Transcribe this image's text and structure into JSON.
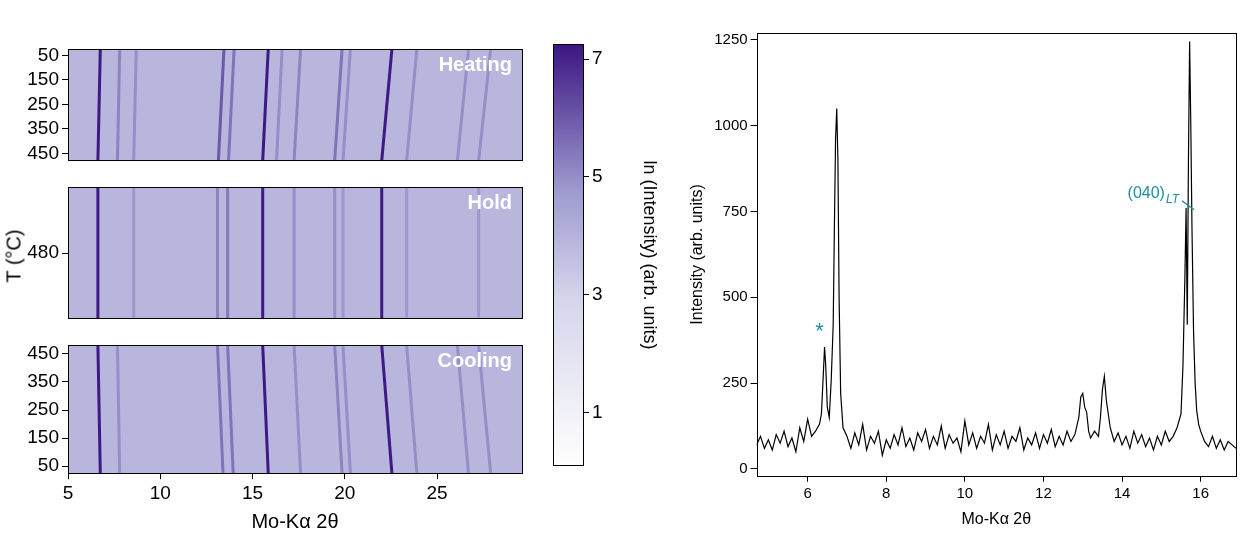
{
  "chart_data": [
    {
      "type": "heatmap",
      "xlabel": "Mo-Kα 2θ",
      "ylabel": "T (°C)",
      "xlim": [
        5,
        29.6
      ],
      "xticks": [
        5,
        10,
        15,
        20,
        25
      ],
      "background": 3.9,
      "color_bar": {
        "label": "ln (Intensity) (arb. units)",
        "range": [
          0.1,
          7.25
        ],
        "ticks": [
          1,
          3,
          5,
          7
        ]
      },
      "panels": [
        {
          "title": "Heating",
          "ylim": [
            480,
            25
          ],
          "yticks": [
            50,
            150,
            250,
            350,
            450
          ],
          "tick_labels": "y",
          "streaks": [
            {
              "x": [
                6.75,
                6.62
              ],
              "y": [
                25,
                480
              ],
              "value": 7.2
            },
            {
              "x": [
                7.8,
                7.68
              ],
              "y": [
                25,
                480
              ],
              "value": 5.2
            },
            {
              "x": [
                8.7,
                8.56
              ],
              "y": [
                25,
                480
              ],
              "value": 5
            },
            {
              "x": [
                13.45,
                13.15
              ],
              "y": [
                25,
                480
              ],
              "value": 6
            },
            {
              "x": [
                14.0,
                13.7
              ],
              "y": [
                25,
                480
              ],
              "value": 5.5
            },
            {
              "x": [
                15.85,
                15.55
              ],
              "y": [
                25,
                480
              ],
              "value": 7.2
            },
            {
              "x": [
                16.6,
                16.3
              ],
              "y": [
                25,
                480
              ],
              "value": 5
            },
            {
              "x": [
                17.6,
                17.25
              ],
              "y": [
                25,
                480
              ],
              "value": 5.2
            },
            {
              "x": [
                19.85,
                19.45
              ],
              "y": [
                25,
                480
              ],
              "value": 5.5
            },
            {
              "x": [
                20.3,
                19.9
              ],
              "y": [
                25,
                480
              ],
              "value": 5
            },
            {
              "x": [
                22.55,
                22.0
              ],
              "y": [
                25,
                480
              ],
              "value": 7.2
            },
            {
              "x": [
                23.9,
                23.35
              ],
              "y": [
                25,
                480
              ],
              "value": 5
            },
            {
              "x": [
                26.7,
                26.1
              ],
              "y": [
                25,
                480
              ],
              "value": 5
            },
            {
              "x": [
                27.9,
                27.25
              ],
              "y": [
                25,
                480
              ],
              "value": 5
            }
          ]
        },
        {
          "title": "Hold",
          "ylim": [
            479,
            481
          ],
          "yticks": [
            480
          ],
          "tick_labels": "y",
          "streaks": [
            {
              "x": [
                6.62,
                6.62
              ],
              "y": [
                479,
                481
              ],
              "value": 7.2
            },
            {
              "x": [
                8.56,
                8.56
              ],
              "y": [
                479,
                481
              ],
              "value": 4.8
            },
            {
              "x": [
                13.1,
                13.1
              ],
              "y": [
                479,
                481
              ],
              "value": 5.2
            },
            {
              "x": [
                13.65,
                13.65
              ],
              "y": [
                479,
                481
              ],
              "value": 5.4
            },
            {
              "x": [
                15.55,
                15.55
              ],
              "y": [
                479,
                481
              ],
              "value": 7.2
            },
            {
              "x": [
                17.25,
                17.25
              ],
              "y": [
                479,
                481
              ],
              "value": 5
            },
            {
              "x": [
                19.45,
                19.45
              ],
              "y": [
                479,
                481
              ],
              "value": 5
            },
            {
              "x": [
                19.9,
                19.9
              ],
              "y": [
                479,
                481
              ],
              "value": 4.8
            },
            {
              "x": [
                22.0,
                22.0
              ],
              "y": [
                479,
                481
              ],
              "value": 7.2
            },
            {
              "x": [
                23.35,
                23.35
              ],
              "y": [
                479,
                481
              ],
              "value": 4.8
            },
            {
              "x": [
                27.25,
                27.25
              ],
              "y": [
                479,
                481
              ],
              "value": 4.8
            }
          ]
        },
        {
          "title": "Cooling",
          "ylim": [
            25,
            480
          ],
          "yticks": [
            50,
            150,
            250,
            350,
            450
          ],
          "streaks": [
            {
              "x": [
                6.62,
                6.75
              ],
              "y": [
                480,
                25
              ],
              "value": 7.2
            },
            {
              "x": [
                7.68,
                7.8
              ],
              "y": [
                480,
                25
              ],
              "value": 5
            },
            {
              "x": [
                13.1,
                13.4
              ],
              "y": [
                480,
                25
              ],
              "value": 5.5
            },
            {
              "x": [
                13.65,
                13.95
              ],
              "y": [
                480,
                25
              ],
              "value": 5.5
            },
            {
              "x": [
                15.55,
                15.85
              ],
              "y": [
                480,
                25
              ],
              "value": 7.2
            },
            {
              "x": [
                17.25,
                17.6
              ],
              "y": [
                480,
                25
              ],
              "value": 5
            },
            {
              "x": [
                19.45,
                19.85
              ],
              "y": [
                480,
                25
              ],
              "value": 5.2
            },
            {
              "x": [
                19.9,
                20.3
              ],
              "y": [
                480,
                25
              ],
              "value": 5
            },
            {
              "x": [
                22.0,
                22.55
              ],
              "y": [
                480,
                25
              ],
              "value": 7.2
            },
            {
              "x": [
                23.35,
                23.9
              ],
              "y": [
                480,
                25
              ],
              "value": 5
            },
            {
              "x": [
                26.1,
                26.7
              ],
              "y": [
                480,
                25
              ],
              "value": 5
            },
            {
              "x": [
                27.25,
                27.9
              ],
              "y": [
                480,
                25
              ],
              "value": 5
            }
          ]
        }
      ]
    },
    {
      "type": "line",
      "xlabel": "Mo-Kα 2θ",
      "ylabel": "Intensity (arb. units)",
      "xlim": [
        4.7,
        16.9
      ],
      "xticks": [
        6,
        8,
        10,
        12,
        14,
        16
      ],
      "ylim": [
        -20,
        1270
      ],
      "yticks": [
        0,
        250,
        500,
        750,
        1000,
        1250
      ],
      "grid": false,
      "color": "#000000",
      "x": [
        4.7,
        4.8,
        4.9,
        5.0,
        5.1,
        5.2,
        5.3,
        5.4,
        5.5,
        5.6,
        5.7,
        5.8,
        5.9,
        6.0,
        6.1,
        6.2,
        6.3,
        6.35,
        6.4,
        6.43,
        6.46,
        6.5,
        6.55,
        6.6,
        6.65,
        6.68,
        6.71,
        6.74,
        6.77,
        6.8,
        6.84,
        6.9,
        7.0,
        7.1,
        7.2,
        7.3,
        7.4,
        7.5,
        7.6,
        7.7,
        7.8,
        7.9,
        8.0,
        8.1,
        8.2,
        8.3,
        8.4,
        8.5,
        8.6,
        8.7,
        8.8,
        8.9,
        9.0,
        9.1,
        9.2,
        9.3,
        9.4,
        9.5,
        9.6,
        9.7,
        9.8,
        9.9,
        10.0,
        10.1,
        10.2,
        10.3,
        10.4,
        10.5,
        10.6,
        10.7,
        10.8,
        10.9,
        11.0,
        11.1,
        11.2,
        11.3,
        11.4,
        11.5,
        11.6,
        11.7,
        11.8,
        11.9,
        12.0,
        12.1,
        12.2,
        12.3,
        12.4,
        12.5,
        12.6,
        12.7,
        12.8,
        12.9,
        12.95,
        13.0,
        13.05,
        13.1,
        13.15,
        13.2,
        13.3,
        13.4,
        13.45,
        13.5,
        13.55,
        13.6,
        13.65,
        13.7,
        13.8,
        13.9,
        14.0,
        14.1,
        14.2,
        14.3,
        14.4,
        14.5,
        14.6,
        14.7,
        14.8,
        14.9,
        15.0,
        15.1,
        15.2,
        15.3,
        15.4,
        15.5,
        15.55,
        15.6,
        15.63,
        15.66,
        15.69,
        15.72,
        15.75,
        15.78,
        15.82,
        15.86,
        15.9,
        15.95,
        16.0,
        16.1,
        16.2,
        16.3,
        16.4,
        16.5,
        16.6,
        16.7,
        16.8,
        16.9
      ],
      "values": [
        70,
        95,
        60,
        85,
        55,
        100,
        75,
        110,
        65,
        90,
        50,
        120,
        80,
        145,
        95,
        110,
        130,
        160,
        280,
        355,
        300,
        180,
        150,
        260,
        420,
        700,
        960,
        1050,
        900,
        500,
        220,
        120,
        95,
        60,
        105,
        70,
        130,
        55,
        95,
        75,
        110,
        40,
        85,
        60,
        100,
        70,
        120,
        65,
        90,
        55,
        105,
        80,
        115,
        60,
        95,
        70,
        125,
        60,
        100,
        75,
        90,
        50,
        140,
        70,
        105,
        60,
        95,
        75,
        130,
        55,
        100,
        70,
        110,
        60,
        95,
        80,
        120,
        55,
        90,
        70,
        105,
        60,
        100,
        75,
        115,
        65,
        95,
        70,
        110,
        80,
        100,
        150,
        210,
        220,
        180,
        165,
        110,
        90,
        110,
        95,
        150,
        230,
        270,
        200,
        160,
        120,
        80,
        105,
        70,
        95,
        60,
        110,
        75,
        100,
        65,
        90,
        55,
        95,
        70,
        110,
        80,
        95,
        120,
        160,
        300,
        560,
        760,
        420,
        900,
        1245,
        1000,
        700,
        400,
        250,
        170,
        130,
        110,
        80,
        65,
        95,
        60,
        85,
        55,
        80,
        70,
        60
      ],
      "annotations": [
        {
          "text": "*",
          "x": 6.3,
          "y": 400,
          "color": "#1b8fa0"
        },
        {
          "text": "(040)",
          "subscript": "LT",
          "x": 15.45,
          "y": 790,
          "color": "#1b8fa0"
        }
      ]
    }
  ]
}
